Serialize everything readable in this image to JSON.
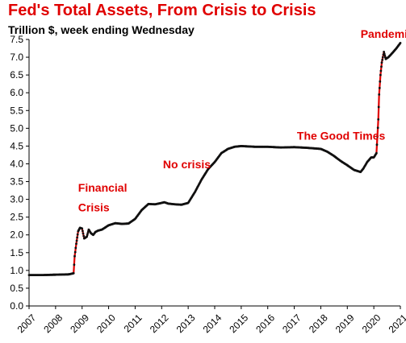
{
  "chart_title": "Fed's Total Assets, From Crisis  to Crisis",
  "chart_subtitle": "Trillion $, week ending Wednesday",
  "colors": {
    "title": "#e00000",
    "line": "#e00000",
    "markers": "#111111",
    "annotation": "#e00000",
    "axis": "#000000"
  },
  "chart_data": {
    "type": "line",
    "title": "Fed's Total Assets, From Crisis  to Crisis",
    "subtitle": "Trillion $, week ending Wednesday",
    "xlabel": "",
    "ylabel": "",
    "xlim": [
      2007,
      2021
    ],
    "ylim": [
      0,
      7.5
    ],
    "grid": false,
    "x_ticks": [
      "2007",
      "2008",
      "2009",
      "2010",
      "2011",
      "2012",
      "2013",
      "2014",
      "2015",
      "2016",
      "2017",
      "2018",
      "2019",
      "2020",
      "2021"
    ],
    "y_ticks": [
      "0.0",
      "0.5",
      "1.0",
      "1.5",
      "2.0",
      "2.5",
      "3.0",
      "3.5",
      "4.0",
      "4.5",
      "5.0",
      "5.5",
      "6.0",
      "6.5",
      "7.0",
      "7.5"
    ],
    "series": [
      {
        "x": [
          2007.0,
          2007.5,
          2008.0,
          2008.5,
          2008.68,
          2008.72,
          2008.78,
          2008.85,
          2008.92,
          2009.0,
          2009.08,
          2009.18,
          2009.25,
          2009.33,
          2009.42,
          2009.5,
          2009.6,
          2009.75,
          2010.0,
          2010.25,
          2010.5,
          2010.75,
          2011.0,
          2011.25,
          2011.5,
          2011.75,
          2012.0,
          2012.1,
          2012.25,
          2012.5,
          2012.75,
          2013.0,
          2013.25,
          2013.5,
          2013.75,
          2014.0,
          2014.25,
          2014.5,
          2014.75,
          2015.0,
          2015.25,
          2015.5,
          2016.0,
          2016.5,
          2017.0,
          2017.5,
          2018.0,
          2018.25,
          2018.5,
          2018.75,
          2019.0,
          2019.25,
          2019.5,
          2019.6,
          2019.75,
          2019.9,
          2020.0,
          2020.1,
          2020.17,
          2020.2,
          2020.25,
          2020.3,
          2020.38,
          2020.45,
          2020.55,
          2020.7,
          2020.85,
          2021.0
        ],
        "y": [
          0.87,
          0.87,
          0.88,
          0.89,
          0.92,
          1.4,
          1.75,
          2.1,
          2.2,
          2.18,
          1.9,
          1.95,
          2.15,
          2.05,
          2.0,
          2.08,
          2.12,
          2.15,
          2.27,
          2.33,
          2.31,
          2.32,
          2.45,
          2.7,
          2.87,
          2.86,
          2.9,
          2.92,
          2.88,
          2.86,
          2.85,
          2.9,
          3.2,
          3.55,
          3.85,
          4.05,
          4.3,
          4.42,
          4.48,
          4.5,
          4.49,
          4.48,
          4.48,
          4.46,
          4.47,
          4.45,
          4.42,
          4.34,
          4.22,
          4.08,
          3.96,
          3.83,
          3.77,
          3.86,
          4.05,
          4.18,
          4.18,
          4.3,
          5.25,
          5.95,
          6.5,
          6.85,
          7.15,
          6.95,
          7.0,
          7.12,
          7.25,
          7.4
        ]
      }
    ],
    "annotations": [
      {
        "text": "Financial",
        "x": 2008.85,
        "y": 3.22
      },
      {
        "text": "Crisis",
        "x": 2008.85,
        "y": 2.66
      },
      {
        "text": "No crisis",
        "x": 2012.05,
        "y": 3.88
      },
      {
        "text": "The Good Times",
        "x": 2017.1,
        "y": 4.68
      },
      {
        "text": "Pandemic",
        "x": 2019.5,
        "y": 7.55
      }
    ]
  }
}
